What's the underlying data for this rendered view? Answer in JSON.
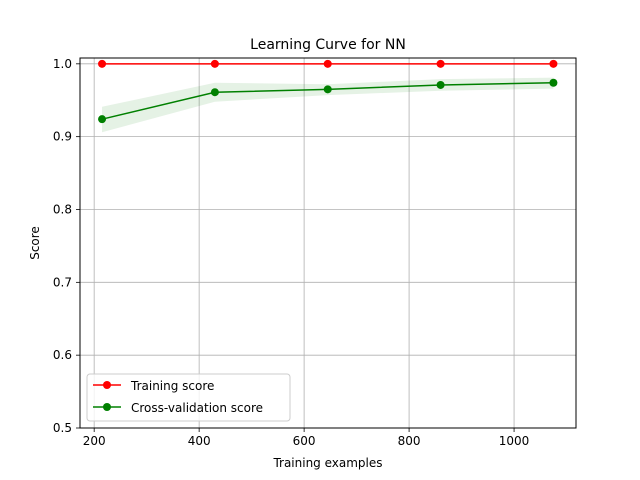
{
  "chart_data": {
    "type": "line",
    "title": "Learning Curve for NN",
    "xlabel": "Training examples",
    "ylabel": "Score",
    "xlim": [
      173,
      1118
    ],
    "ylim": [
      0.5,
      1.008
    ],
    "xticks": [
      200,
      400,
      600,
      800,
      1000
    ],
    "yticks": [
      0.5,
      0.6,
      0.7,
      0.8,
      0.9,
      1.0
    ],
    "xtick_labels": [
      "200",
      "400",
      "600",
      "800",
      "1000"
    ],
    "ytick_labels": [
      "0.5",
      "0.6",
      "0.7",
      "0.8",
      "0.9",
      "1.0"
    ],
    "grid": true,
    "legend_position": "lower-left",
    "x": [
      215,
      430,
      645,
      860,
      1075
    ],
    "series": [
      {
        "name": "Training score",
        "color": "#ff0000",
        "values": [
          1.0,
          1.0,
          1.0,
          1.0,
          1.0
        ],
        "band_lower": [
          1.0,
          1.0,
          1.0,
          1.0,
          1.0
        ],
        "band_upper": [
          1.0,
          1.0,
          1.0,
          1.0,
          1.0
        ]
      },
      {
        "name": "Cross-validation score",
        "color": "#008000",
        "values": [
          0.924,
          0.961,
          0.965,
          0.971,
          0.974
        ],
        "band_lower": [
          0.906,
          0.948,
          0.957,
          0.963,
          0.966
        ],
        "band_upper": [
          0.941,
          0.974,
          0.972,
          0.979,
          0.981
        ]
      }
    ]
  }
}
